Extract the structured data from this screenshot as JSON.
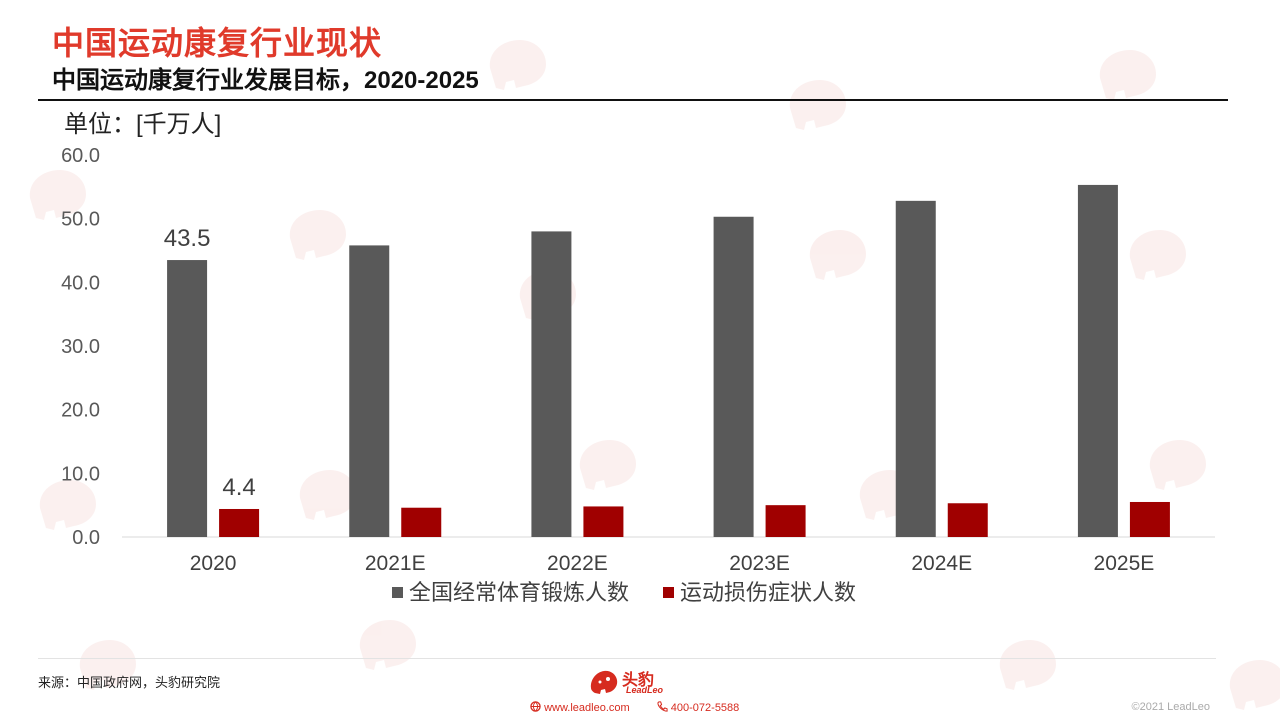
{
  "header": {
    "title": "中国运动康复行业现状",
    "subtitle": "中国运动康复行业发展目标，2020-2025",
    "unit": "单位：[千万人]"
  },
  "chart_data": {
    "type": "bar",
    "categories": [
      "2020",
      "2021E",
      "2022E",
      "2023E",
      "2024E",
      "2025E"
    ],
    "series": [
      {
        "name": "全国经常体育锻炼人数",
        "values": [
          43.5,
          45.8,
          48.0,
          50.3,
          52.8,
          55.3
        ],
        "color": "#595959"
      },
      {
        "name": "运动损伤症状人数",
        "values": [
          4.4,
          4.6,
          4.8,
          5.0,
          5.3,
          5.5
        ],
        "color": "#a00000"
      }
    ],
    "data_labels": [
      {
        "series": 0,
        "index": 0,
        "text": "43.5"
      },
      {
        "series": 1,
        "index": 0,
        "text": "4.4"
      }
    ],
    "yticks": [
      "0.0",
      "10.0",
      "20.0",
      "30.0",
      "40.0",
      "50.0",
      "60.0"
    ],
    "ylim": [
      0,
      60
    ],
    "grid": false,
    "legend": "bottom"
  },
  "footer": {
    "source": "来源：中国政府网，头豹研究院",
    "website": "www.leadleo.com",
    "phone": "400-072-5588",
    "copyright": "©2021 LeadLeo",
    "logo_text": "头豹",
    "logo_sub": "LeadLeo"
  },
  "colors": {
    "accent": "#e03a2b",
    "brand": "#d62b1f"
  },
  "icons": {
    "web": "globe-icon",
    "phone": "phone-icon",
    "logo": "leopard-logo-icon"
  }
}
